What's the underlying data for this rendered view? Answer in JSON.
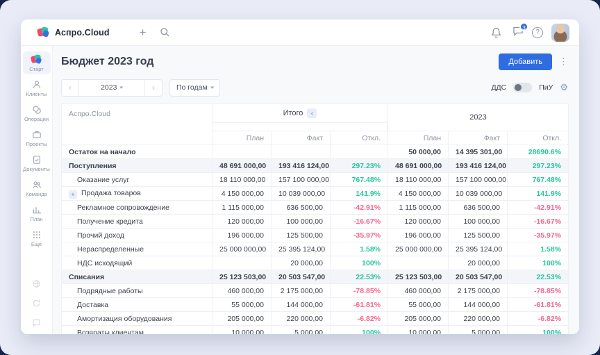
{
  "topbar": {
    "brand": "Аспро.Cloud",
    "messages_badge": "3"
  },
  "icons": {
    "plus": "+",
    "kebab": "⋮",
    "chevron_left": "‹",
    "chevron_right": "›",
    "caret_down": "▾",
    "help": "?",
    "gear": "⚙",
    "expand_plus": "+",
    "collapse_left": "‹"
  },
  "sidebar": {
    "items": [
      {
        "key": "start",
        "label": "Старт",
        "icon": "logo",
        "active": true
      },
      {
        "key": "clients",
        "label": "Клиенты",
        "icon": "clients",
        "active": false
      },
      {
        "key": "operations",
        "label": "Операции",
        "icon": "operations",
        "active": false
      },
      {
        "key": "projects",
        "label": "Проекты",
        "icon": "projects",
        "active": false
      },
      {
        "key": "documents",
        "label": "Документы",
        "icon": "documents",
        "active": false
      },
      {
        "key": "team",
        "label": "Команда",
        "icon": "team",
        "active": false
      },
      {
        "key": "plan",
        "label": "План",
        "icon": "plan",
        "active": false
      },
      {
        "key": "more",
        "label": "Ещё",
        "icon": "more",
        "active": false
      }
    ],
    "footer_icons": [
      {
        "key": "footer-1",
        "icon": "globe"
      },
      {
        "key": "footer-2",
        "icon": "refresh"
      },
      {
        "key": "footer-3",
        "icon": "chat"
      }
    ]
  },
  "page": {
    "title": "Бюджет 2023 год",
    "add_button": "Добавить"
  },
  "filters": {
    "year": "2023",
    "period": "По годам",
    "dds_label": "ДДС",
    "piu_label": "ПиУ",
    "toggle_state": "left"
  },
  "table": {
    "corner_label": "Аспро.Cloud",
    "groups": [
      "Итого",
      "2023"
    ],
    "subheaders": [
      "План",
      "Факт",
      "Откл."
    ],
    "rows": [
      {
        "key": "ostatok-na-nachalo",
        "label": "Остаток на начало",
        "style": "bold",
        "expandable": false,
        "itogo": [
          "",
          "",
          ""
        ],
        "y2023": [
          "50 000,00",
          "14 395 301,00",
          "28690.6%"
        ]
      },
      {
        "key": "postupleniya",
        "label": "Поступления",
        "style": "section",
        "expandable": false,
        "itogo": [
          "48 691 000,00",
          "193 416 124,00",
          "297.23%"
        ],
        "y2023": [
          "48 691 000,00",
          "193 416 124,00",
          "297.23%"
        ]
      },
      {
        "key": "okazanie-uslug",
        "label": "Оказание услуг",
        "style": "item",
        "expandable": false,
        "itogo": [
          "18 110 000,00",
          "157 100 000,00",
          "767.48%"
        ],
        "y2023": [
          "18 110 000,00",
          "157 100 000,00",
          "767.48%"
        ]
      },
      {
        "key": "prodazha-tovarov",
        "label": "Продажа товаров",
        "style": "item",
        "expandable": true,
        "itogo": [
          "4 150 000,00",
          "10 039 000,00",
          "141.9%"
        ],
        "y2023": [
          "4 150 000,00",
          "10 039 000,00",
          "141.9%"
        ]
      },
      {
        "key": "reklamnoe-soprovozhdenie",
        "label": "Рекламное сопровождение",
        "style": "item",
        "expandable": false,
        "itogo": [
          "1 115 000,00",
          "636 500,00",
          "-42.91%"
        ],
        "y2023": [
          "1 115 000,00",
          "636 500,00",
          "-42.91%"
        ]
      },
      {
        "key": "poluchenie-kredita",
        "label": "Получение кредита",
        "style": "item",
        "expandable": false,
        "itogo": [
          "120 000,00",
          "100 000,00",
          "-16.67%"
        ],
        "y2023": [
          "120 000,00",
          "100 000,00",
          "-16.67%"
        ]
      },
      {
        "key": "prochij-dohod",
        "label": "Прочий доход",
        "style": "item",
        "expandable": false,
        "itogo": [
          "196 000,00",
          "125 500,00",
          "-35.97%"
        ],
        "y2023": [
          "196 000,00",
          "125 500,00",
          "-35.97%"
        ]
      },
      {
        "key": "neraspredelennye",
        "label": "Нераспределенные",
        "style": "item",
        "expandable": false,
        "itogo": [
          "25 000 000,00",
          "25 395 124,00",
          "1.58%"
        ],
        "y2023": [
          "25 000 000,00",
          "25 395 124,00",
          "1.58%"
        ]
      },
      {
        "key": "nds-ishodyashchij",
        "label": "НДС исходящий",
        "style": "item",
        "expandable": false,
        "itogo": [
          "",
          "20 000,00",
          "100%"
        ],
        "y2023": [
          "",
          "20 000,00",
          "100%"
        ]
      },
      {
        "key": "spisaniya",
        "label": "Списания",
        "style": "section",
        "expandable": false,
        "itogo": [
          "25 123 503,00",
          "20 503 547,00",
          "22.53%"
        ],
        "y2023": [
          "25 123 503,00",
          "20 503 547,00",
          "22.53%"
        ]
      },
      {
        "key": "podryadnye-raboty",
        "label": "Подрядные работы",
        "style": "item",
        "expandable": false,
        "itogo": [
          "460 000,00",
          "2 175 000,00",
          "-78.85%"
        ],
        "y2023": [
          "460 000,00",
          "2 175 000,00",
          "-78.85%"
        ]
      },
      {
        "key": "dostavka",
        "label": "Доставка",
        "style": "item",
        "expandable": false,
        "itogo": [
          "55 000,00",
          "144 000,00",
          "-61.81%"
        ],
        "y2023": [
          "55 000,00",
          "144 000,00",
          "-61.81%"
        ]
      },
      {
        "key": "amortizaciya-oborudovaniya",
        "label": "Амортизация оборудования",
        "style": "item",
        "expandable": false,
        "itogo": [
          "205 000,00",
          "220 000,00",
          "-6.82%"
        ],
        "y2023": [
          "205 000,00",
          "220 000,00",
          "-6.82%"
        ]
      },
      {
        "key": "vozvraty-klientam",
        "label": "Возвраты клиентам",
        "style": "item",
        "expandable": false,
        "itogo": [
          "10 000,00",
          "5 000,00",
          "100%"
        ],
        "y2023": [
          "10 000,00",
          "5 000,00",
          "100%"
        ]
      }
    ]
  },
  "colors": {
    "accent_blue": "#2f6ce0",
    "positive_green": "#29c5a3",
    "negative_red": "#f2688c"
  }
}
